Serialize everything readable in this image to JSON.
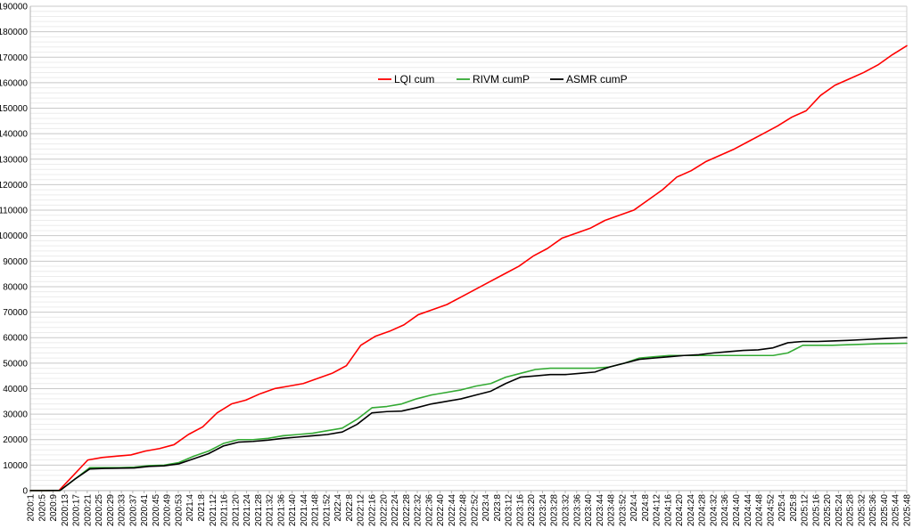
{
  "chart_data": {
    "type": "line",
    "title": "",
    "xlabel": "",
    "ylabel": "",
    "ylim": [
      0,
      190000
    ],
    "y_ticks": [
      0,
      10000,
      20000,
      30000,
      40000,
      50000,
      60000,
      70000,
      80000,
      90000,
      100000,
      110000,
      120000,
      130000,
      140000,
      150000,
      160000,
      170000,
      180000,
      190000
    ],
    "x_tick_labels": [
      "2020:1",
      "2020:5",
      "2020:9",
      "2020:13",
      "2020:17",
      "2020:21",
      "2020:25",
      "2020:29",
      "2020:33",
      "2020:37",
      "2020:41",
      "2020:45",
      "2020:49",
      "2020:53",
      "2021:4",
      "2021:8",
      "2021:12",
      "2021:16",
      "2021:20",
      "2021:24",
      "2021:28",
      "2021:32",
      "2021:36",
      "2021:40",
      "2021:44",
      "2021:48",
      "2021:52",
      "2022:4",
      "2022:8",
      "2022:12",
      "2022:16",
      "2022:20",
      "2022:24",
      "2022:28",
      "2022:32",
      "2022:36",
      "2022:40",
      "2022:44",
      "2022:48",
      "2022:52",
      "2023:4",
      "2023:8",
      "2023:12",
      "2023:16",
      "2023:20",
      "2023:24",
      "2023:28",
      "2023:32",
      "2023:36",
      "2023:40",
      "2023:44",
      "2023:48",
      "2023:52",
      "2024:4",
      "2024:8",
      "2024:12",
      "2024:16",
      "2024:20",
      "2024:24",
      "2024:28",
      "2024:32",
      "2024:36",
      "2024:40",
      "2024:44",
      "2024:48",
      "2024:52",
      "2025:4",
      "2025:8",
      "2025:12",
      "2025:16",
      "2025:20",
      "2025:24",
      "2025:28",
      "2025:32",
      "2025:36",
      "2025:40",
      "2025:44",
      "2025:48"
    ],
    "grid": true,
    "legend_position": "top-center",
    "series": [
      {
        "name": "LQI cum",
        "color": "#ff0000",
        "values": [
          0,
          0,
          50,
          6000,
          12000,
          13000,
          13500,
          14000,
          15500,
          16500,
          18000,
          22000,
          25000,
          30500,
          34000,
          35500,
          38000,
          40000,
          41000,
          42000,
          44000,
          46000,
          49000,
          57000,
          60500,
          62500,
          65000,
          69000,
          71000,
          73000,
          76000,
          79000,
          82000,
          85000,
          88000,
          92000,
          95000,
          99000,
          101000,
          103000,
          106000,
          108000,
          110000,
          114000,
          118000,
          123000,
          125500,
          129000,
          131500,
          134000,
          137000,
          140000,
          143000,
          146500,
          149000,
          155000,
          159000,
          161500,
          164000,
          167000,
          171000,
          174500
        ]
      },
      {
        "name": "RIVM cumP",
        "color": "#33aa33",
        "values": [
          0,
          0,
          50,
          4500,
          9000,
          9000,
          9000,
          9200,
          9800,
          10000,
          11000,
          13500,
          15500,
          18500,
          20000,
          20000,
          20500,
          21500,
          22000,
          22500,
          23500,
          24500,
          28000,
          32500,
          33000,
          34000,
          36000,
          37500,
          38500,
          39500,
          41000,
          42000,
          44500,
          46000,
          47500,
          48000,
          48000,
          48000,
          48000,
          48500,
          50000,
          52000,
          52500,
          53000,
          53000,
          53000,
          53000,
          53000,
          53000,
          53000,
          53000,
          54000,
          57000,
          57000,
          57000,
          57200,
          57400,
          57600,
          57700,
          57800
        ]
      },
      {
        "name": "ASMR cumP",
        "color": "#000000",
        "values": [
          0,
          0,
          50,
          4500,
          8500,
          8700,
          8800,
          8900,
          9500,
          9700,
          10500,
          12500,
          14500,
          17500,
          19000,
          19300,
          19800,
          20500,
          21000,
          21500,
          22000,
          23000,
          26000,
          30500,
          31000,
          31200,
          32500,
          34000,
          35000,
          36000,
          37500,
          39000,
          42000,
          44500,
          45000,
          45500,
          45500,
          46000,
          46500,
          48500,
          50000,
          51500,
          52000,
          52500,
          53000,
          53300,
          54000,
          54500,
          55000,
          55200,
          56000,
          58000,
          58500,
          58500,
          58700,
          58900,
          59200,
          59500,
          59800,
          60000
        ]
      }
    ]
  }
}
